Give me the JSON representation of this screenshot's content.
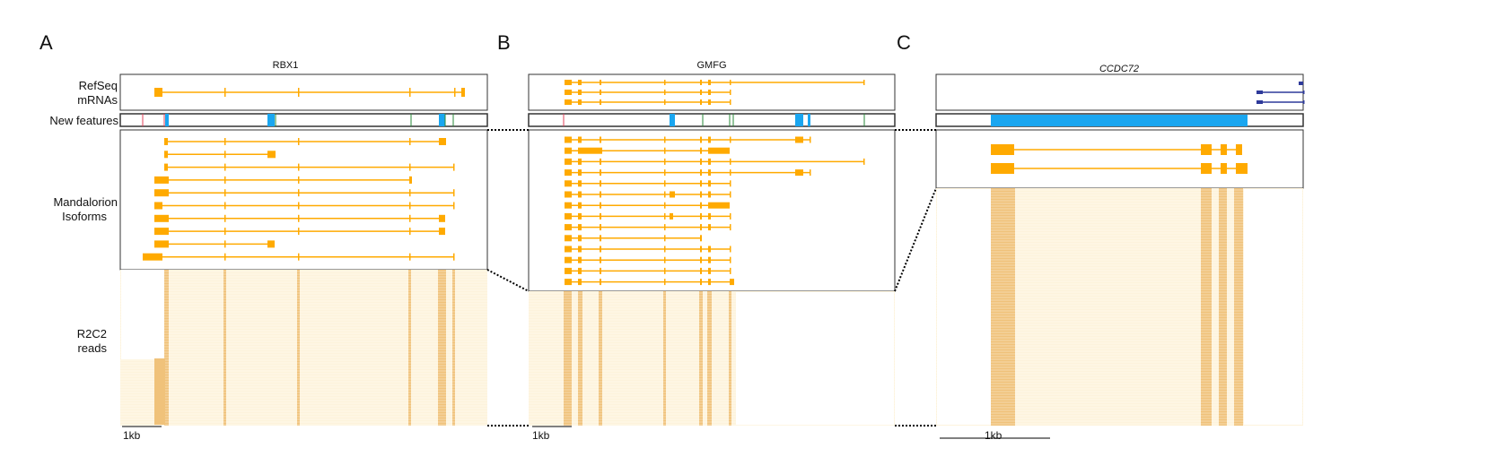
{
  "panels": [
    {
      "letter": "A",
      "gene": "RBX1",
      "gene_italic": false,
      "scale_label": "1kb"
    },
    {
      "letter": "B",
      "gene": "GMFG",
      "gene_italic": false,
      "scale_label": "1kb"
    },
    {
      "letter": "C",
      "gene": "CCDC72",
      "gene_italic": true,
      "scale_label": "1kb"
    }
  ],
  "track_labels": {
    "refseq": [
      "RefSeq",
      "mRNAs"
    ],
    "new_features": "New features",
    "isoforms": [
      "Mandalorion",
      "Isoforms"
    ],
    "reads": [
      "R2C2",
      "reads"
    ]
  },
  "colors": {
    "isoform": "#ffaa00",
    "refseq_other_strand": "#2e3a9a",
    "new_exon": "#1aa6f0",
    "new_splice_site_red": "#e0405a",
    "new_splice_site_green": "#2a8a3a",
    "read_background": "#fdf3dc",
    "read_exon": "#f0c27a"
  }
}
